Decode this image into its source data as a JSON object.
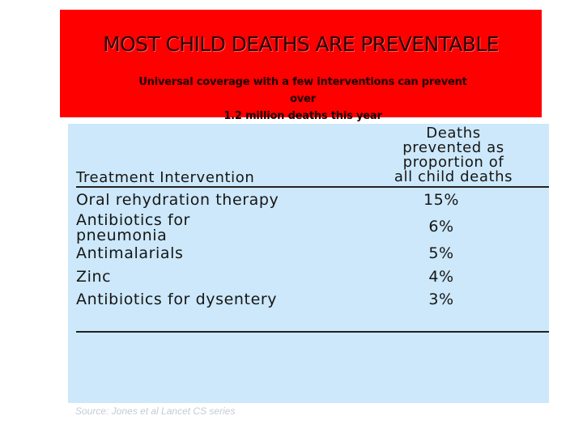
{
  "slide": {
    "title": "MOST CHILD DEATHS ARE PREVENTABLE",
    "subtitle_line1": "Universal coverage with a few interventions can prevent over",
    "subtitle_line2": "1.2 million deaths this year"
  },
  "table": {
    "col1_header": "Treatment Intervention",
    "col2_header": [
      "Deaths",
      "prevented as",
      "proportion of",
      "all child deaths"
    ],
    "rows": [
      {
        "intervention": [
          "Oral rehydration therapy"
        ],
        "value": "15%"
      },
      {
        "intervention": [
          "Antibiotics for",
          "pneumonia"
        ],
        "value": "6%"
      },
      {
        "intervention": [
          "Antimalarials"
        ],
        "value": "5%"
      },
      {
        "intervention": [
          "Zinc"
        ],
        "value": "4%"
      },
      {
        "intervention": [
          "Antibiotics for dysentery"
        ],
        "value": "3%"
      }
    ]
  },
  "source": "Source: Jones et al Lancet CS series",
  "colors": {
    "banner": "#fe0000",
    "panel": "#cce8fa"
  }
}
